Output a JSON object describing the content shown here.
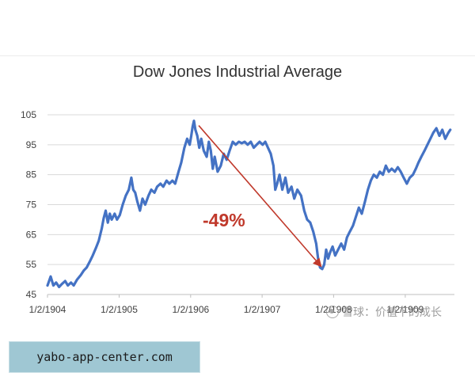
{
  "chart_data": {
    "type": "line",
    "title": "Dow Jones Industrial Average",
    "xlabel": "",
    "ylabel": "",
    "ylim": [
      45,
      105
    ],
    "grid": true,
    "y_ticks": [
      45,
      55,
      65,
      75,
      85,
      95,
      105
    ],
    "x_ticks": [
      "1/2/1904",
      "1/2/1905",
      "1/2/1906",
      "1/2/1907",
      "1/2/1908",
      "1/2/1909"
    ],
    "series": [
      {
        "color": "#4472c4",
        "points": [
          [
            "1904-01-02",
            48
          ],
          [
            "1904-01-18",
            51
          ],
          [
            "1904-02-01",
            48
          ],
          [
            "1904-02-15",
            49
          ],
          [
            "1904-03-01",
            47.5
          ],
          [
            "1904-03-15",
            48.5
          ],
          [
            "1904-04-01",
            49.5
          ],
          [
            "1904-04-15",
            48
          ],
          [
            "1904-05-01",
            49
          ],
          [
            "1904-05-15",
            48
          ],
          [
            "1904-06-01",
            50
          ],
          [
            "1904-06-20",
            51.5
          ],
          [
            "1904-07-05",
            53
          ],
          [
            "1904-07-20",
            54
          ],
          [
            "1904-08-05",
            56
          ],
          [
            "1904-08-20",
            58
          ],
          [
            "1904-09-05",
            60.5
          ],
          [
            "1904-09-20",
            63
          ],
          [
            "1904-10-05",
            67
          ],
          [
            "1904-10-15",
            70.5
          ],
          [
            "1904-10-25",
            73
          ],
          [
            "1904-11-05",
            69
          ],
          [
            "1904-11-15",
            72
          ],
          [
            "1904-11-25",
            70
          ],
          [
            "1904-12-10",
            72
          ],
          [
            "1904-12-22",
            70
          ],
          [
            "1905-01-05",
            71.5
          ],
          [
            "1905-01-20",
            75
          ],
          [
            "1905-02-05",
            78
          ],
          [
            "1905-02-20",
            80
          ],
          [
            "1905-03-05",
            84
          ],
          [
            "1905-03-15",
            80
          ],
          [
            "1905-03-25",
            79
          ],
          [
            "1905-04-05",
            76
          ],
          [
            "1905-04-18",
            73
          ],
          [
            "1905-05-01",
            77
          ],
          [
            "1905-05-15",
            75
          ],
          [
            "1905-06-01",
            78
          ],
          [
            "1905-06-15",
            80
          ],
          [
            "1905-07-01",
            79
          ],
          [
            "1905-07-15",
            81
          ],
          [
            "1905-08-01",
            82
          ],
          [
            "1905-08-15",
            81
          ],
          [
            "1905-09-01",
            83
          ],
          [
            "1905-09-15",
            82
          ],
          [
            "1905-10-01",
            83
          ],
          [
            "1905-10-15",
            82
          ],
          [
            "1905-11-01",
            86
          ],
          [
            "1905-11-15",
            89
          ],
          [
            "1905-12-01",
            94
          ],
          [
            "1905-12-15",
            97
          ],
          [
            "1905-12-28",
            95
          ],
          [
            "1906-01-05",
            98
          ],
          [
            "1906-01-12",
            101
          ],
          [
            "1906-01-19",
            103
          ],
          [
            "1906-01-26",
            100
          ],
          [
            "1906-02-05",
            98
          ],
          [
            "1906-02-15",
            94
          ],
          [
            "1906-02-25",
            97
          ],
          [
            "1906-03-10",
            93
          ],
          [
            "1906-03-25",
            91
          ],
          [
            "1906-04-05",
            96
          ],
          [
            "1906-04-15",
            93
          ],
          [
            "1906-04-25",
            87
          ],
          [
            "1906-05-05",
            91
          ],
          [
            "1906-05-20",
            86
          ],
          [
            "1906-06-05",
            88
          ],
          [
            "1906-06-20",
            92
          ],
          [
            "1906-07-05",
            90
          ],
          [
            "1906-07-20",
            93
          ],
          [
            "1906-08-05",
            96
          ],
          [
            "1906-08-20",
            95
          ],
          [
            "1906-09-05",
            96
          ],
          [
            "1906-09-20",
            95.5
          ],
          [
            "1906-10-05",
            96
          ],
          [
            "1906-10-20",
            95
          ],
          [
            "1906-11-05",
            96
          ],
          [
            "1906-11-20",
            94
          ],
          [
            "1906-12-05",
            95
          ],
          [
            "1906-12-20",
            96
          ],
          [
            "1907-01-05",
            95
          ],
          [
            "1907-01-18",
            96
          ],
          [
            "1907-02-01",
            94
          ],
          [
            "1907-02-15",
            92
          ],
          [
            "1907-03-01",
            88
          ],
          [
            "1907-03-10",
            80
          ],
          [
            "1907-03-20",
            82
          ],
          [
            "1907-04-01",
            85
          ],
          [
            "1907-04-15",
            80
          ],
          [
            "1907-05-01",
            84
          ],
          [
            "1907-05-15",
            79
          ],
          [
            "1907-06-01",
            81
          ],
          [
            "1907-06-15",
            77
          ],
          [
            "1907-07-01",
            80
          ],
          [
            "1907-07-20",
            78
          ],
          [
            "1907-08-05",
            73
          ],
          [
            "1907-08-20",
            70
          ],
          [
            "1907-09-05",
            69
          ],
          [
            "1907-09-20",
            66
          ],
          [
            "1907-10-05",
            62
          ],
          [
            "1907-10-15",
            57
          ],
          [
            "1907-10-25",
            54
          ],
          [
            "1907-11-05",
            53.5
          ],
          [
            "1907-11-15",
            55
          ],
          [
            "1907-11-25",
            60
          ],
          [
            "1907-12-05",
            57
          ],
          [
            "1907-12-15",
            59
          ],
          [
            "1907-12-28",
            61
          ],
          [
            "1908-01-10",
            58
          ],
          [
            "1908-01-25",
            60
          ],
          [
            "1908-02-10",
            62
          ],
          [
            "1908-02-25",
            60
          ],
          [
            "1908-03-10",
            64
          ],
          [
            "1908-03-25",
            66
          ],
          [
            "1908-04-10",
            68
          ],
          [
            "1908-04-25",
            71
          ],
          [
            "1908-05-10",
            74
          ],
          [
            "1908-05-25",
            72
          ],
          [
            "1908-06-10",
            76
          ],
          [
            "1908-06-25",
            80
          ],
          [
            "1908-07-10",
            83
          ],
          [
            "1908-07-25",
            85
          ],
          [
            "1908-08-10",
            84
          ],
          [
            "1908-08-25",
            86
          ],
          [
            "1908-09-10",
            85
          ],
          [
            "1908-09-25",
            88
          ],
          [
            "1908-10-10",
            86
          ],
          [
            "1908-10-25",
            87
          ],
          [
            "1908-11-10",
            86
          ],
          [
            "1908-11-25",
            87.5
          ],
          [
            "1908-12-10",
            86
          ],
          [
            "1908-12-25",
            84
          ],
          [
            "1909-01-10",
            82
          ],
          [
            "1909-01-25",
            84
          ],
          [
            "1909-02-10",
            85
          ],
          [
            "1909-02-25",
            87
          ],
          [
            "1909-03-10",
            89
          ],
          [
            "1909-03-25",
            91
          ],
          [
            "1909-04-10",
            93
          ],
          [
            "1909-04-25",
            95
          ],
          [
            "1909-05-10",
            97
          ],
          [
            "1909-05-25",
            99
          ],
          [
            "1909-06-10",
            100.5
          ],
          [
            "1909-06-25",
            98
          ],
          [
            "1909-07-10",
            100
          ],
          [
            "1909-07-25",
            97
          ],
          [
            "1909-08-10",
            99
          ],
          [
            "1909-08-20",
            100
          ]
        ]
      }
    ],
    "annotations": [
      {
        "text": "-49%",
        "color": "#c0392b",
        "from": [
          "1906-01-19",
          103
        ],
        "to": [
          "1907-11-05",
          53.5
        ]
      }
    ]
  },
  "watermark": {
    "text": "雪球：价值下的成长"
  },
  "banner": {
    "text": "yabo-app-center.com"
  }
}
